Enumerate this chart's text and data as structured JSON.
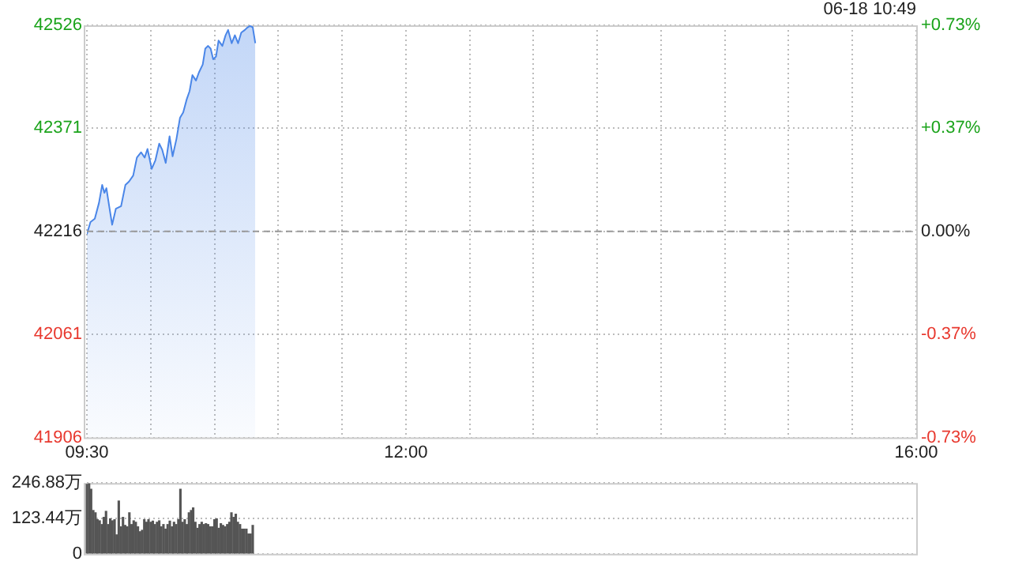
{
  "chart_data": [
    {
      "type": "area",
      "annotations": [
        "06-18 10:49"
      ],
      "x": [
        9.5,
        9.528,
        9.562,
        9.595,
        9.62,
        9.637,
        9.653,
        9.678,
        9.698,
        9.727,
        9.768,
        9.802,
        9.83,
        9.863,
        9.892,
        9.925,
        9.953,
        9.975,
        10.008,
        10.037,
        10.067,
        10.09,
        10.118,
        10.148,
        10.172,
        10.202,
        10.23,
        10.255,
        10.283,
        10.305,
        10.327,
        10.355,
        10.378,
        10.408,
        10.428,
        10.45,
        10.47,
        10.49,
        10.512,
        10.532,
        10.562,
        10.587,
        10.607,
        10.635,
        10.66,
        10.685,
        10.71,
        10.738,
        10.76,
        10.778,
        10.8,
        10.82
      ],
      "series": [
        {
          "color": "#4a86e8",
          "values": [
            42212,
            42230,
            42235,
            42259,
            42286,
            42274,
            42281,
            42250,
            42226,
            42250,
            42254,
            42286,
            42291,
            42300,
            42327,
            42335,
            42327,
            42340,
            42310,
            42323,
            42348,
            42339,
            42319,
            42359,
            42329,
            42355,
            42387,
            42395,
            42415,
            42427,
            42451,
            42443,
            42455,
            42467,
            42491,
            42495,
            42491,
            42475,
            42479,
            42503,
            42495,
            42511,
            42519,
            42499,
            42511,
            42499,
            42515,
            42519,
            42523,
            42525,
            42523,
            42499
          ]
        }
      ],
      "xlim": [
        9.5,
        16
      ],
      "xticks": [
        {
          "value": 9.5,
          "label": "09:30"
        },
        {
          "value": 10,
          "label": null
        },
        {
          "value": 10.5,
          "label": null
        },
        {
          "value": 11,
          "label": null
        },
        {
          "value": 11.5,
          "label": null
        },
        {
          "value": 12,
          "label": "12:00"
        },
        {
          "value": 12.5,
          "label": null
        },
        {
          "value": 13,
          "label": null
        },
        {
          "value": 13.5,
          "label": null
        },
        {
          "value": 14,
          "label": null
        },
        {
          "value": 14.5,
          "label": null
        },
        {
          "value": 15,
          "label": null
        },
        {
          "value": 15.5,
          "label": null
        },
        {
          "value": 16,
          "label": "16:00"
        }
      ],
      "ylim": [
        41906,
        42526
      ],
      "yticks": [
        41906,
        42061,
        42216,
        42371,
        42526
      ],
      "y2lim": [
        -0.734,
        0.734
      ],
      "y2ticks": [
        {
          "value": -0.734,
          "label": "-0.73%"
        },
        {
          "value": -0.367,
          "label": "-0.37%"
        },
        {
          "value": 0,
          "label": "0.00%"
        },
        {
          "value": 0.367,
          "label": "+0.37%"
        },
        {
          "value": 0.734,
          "label": "+0.73%"
        }
      ],
      "ref_lines": [
        {
          "axis": "y",
          "value": 42216,
          "color": "#999999",
          "line_style": "dashed"
        }
      ],
      "grid": true,
      "legend": false
    },
    {
      "type": "bar",
      "tick_labels": "y",
      "x": [
        9.5,
        9.517,
        9.533,
        9.55,
        9.567,
        9.583,
        9.6,
        9.617,
        9.633,
        9.65,
        9.667,
        9.683,
        9.7,
        9.717,
        9.733,
        9.75,
        9.767,
        9.783,
        9.8,
        9.817,
        9.833,
        9.85,
        9.867,
        9.883,
        9.9,
        9.917,
        9.933,
        9.95,
        9.967,
        9.983,
        10,
        10.017,
        10.033,
        10.05,
        10.067,
        10.083,
        10.1,
        10.117,
        10.133,
        10.15,
        10.167,
        10.183,
        10.2,
        10.217,
        10.233,
        10.25,
        10.267,
        10.283,
        10.3,
        10.317,
        10.333,
        10.35,
        10.367,
        10.383,
        10.4,
        10.417,
        10.433,
        10.45,
        10.467,
        10.483,
        10.5,
        10.517,
        10.533,
        10.55,
        10.567,
        10.583,
        10.6,
        10.617,
        10.633,
        10.65,
        10.667,
        10.683,
        10.7,
        10.717,
        10.733,
        10.75,
        10.767,
        10.783,
        10.8
      ],
      "series": [
        {
          "color": "#555555",
          "values": [
            242,
            244,
            225,
            151,
            143,
            119,
            115,
            102,
            127,
            148,
            102,
            122,
            115,
            119,
            66,
            184,
            94,
            127,
            99,
            94,
            143,
            102,
            115,
            110,
            94,
            77,
            82,
            119,
            110,
            119,
            110,
            114,
            102,
            110,
            115,
            94,
            102,
            86,
            102,
            114,
            94,
            110,
            102,
            119,
            225,
            110,
            119,
            102,
            143,
            151,
            160,
            110,
            89,
            102,
            110,
            102,
            105,
            102,
            94,
            94,
            119,
            122,
            89,
            105,
            99,
            94,
            102,
            110,
            143,
            127,
            138,
            110,
            102,
            86,
            86,
            86,
            69,
            69,
            99
          ]
        }
      ],
      "xlim": [
        9.5,
        16
      ],
      "ylim": [
        0,
        246.88
      ],
      "yticks": [
        {
          "value": 0,
          "label": "0"
        },
        {
          "value": 123.44,
          "label": "123.44万"
        },
        {
          "value": 246.88,
          "label": "246.88万"
        }
      ],
      "grid": "y",
      "legend": false
    }
  ]
}
